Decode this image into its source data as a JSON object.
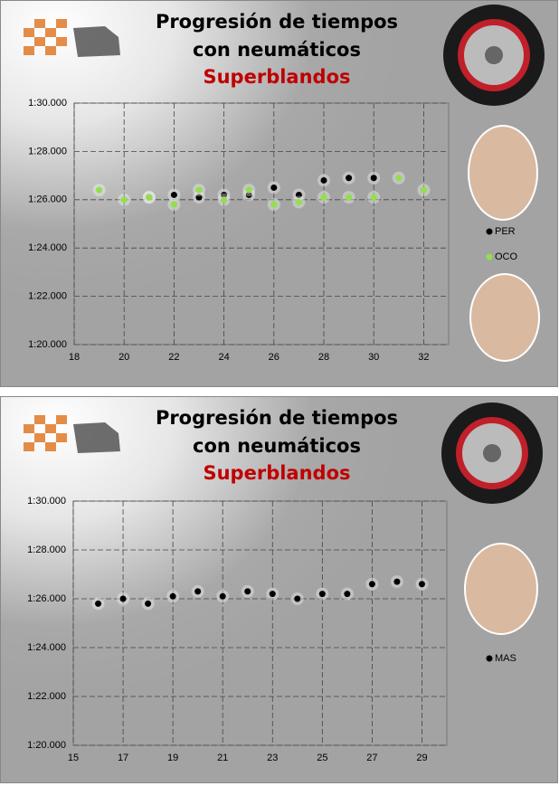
{
  "chart_data": [
    {
      "type": "scatter",
      "title": "Progresión de tiempos con neumáticos",
      "subtitle": "Superblandos",
      "xlim": [
        18,
        33
      ],
      "xticks": [
        18,
        20,
        22,
        24,
        26,
        28,
        30,
        32
      ],
      "ylim": [
        80,
        90
      ],
      "yticks": [
        {
          "value": 80,
          "label": "1:20.000"
        },
        {
          "value": 82,
          "label": "1:22.000"
        },
        {
          "value": 84,
          "label": "1:24.000"
        },
        {
          "value": 86,
          "label": "1:26.000"
        },
        {
          "value": 88,
          "label": "1:28.000"
        },
        {
          "value": 90,
          "label": "1:30.000"
        }
      ],
      "grid": true,
      "series": [
        {
          "name": "PER",
          "color": "#000000",
          "x": [
            21,
            22,
            23,
            24,
            25,
            26,
            27,
            28,
            29,
            30
          ],
          "values": [
            86.1,
            86.2,
            86.1,
            86.2,
            86.2,
            86.5,
            86.2,
            86.8,
            86.9,
            86.9
          ]
        },
        {
          "name": "OCO",
          "color": "#92e04a",
          "x": [
            19,
            20,
            21,
            22,
            23,
            24,
            25,
            26,
            27,
            28,
            29,
            30,
            31,
            32
          ],
          "values": [
            86.4,
            86.0,
            86.1,
            85.8,
            86.4,
            86.0,
            86.4,
            85.8,
            85.9,
            86.1,
            86.1,
            86.1,
            86.9,
            86.4
          ]
        }
      ]
    },
    {
      "type": "scatter",
      "title": "Progresión de tiempos con neumáticos",
      "subtitle": "Superblandos",
      "xlim": [
        15,
        30
      ],
      "xticks": [
        15,
        17,
        19,
        21,
        23,
        25,
        27,
        29
      ],
      "ylim": [
        80,
        90
      ],
      "yticks": [
        {
          "value": 80,
          "label": "1:20.000"
        },
        {
          "value": 82,
          "label": "1:22.000"
        },
        {
          "value": 84,
          "label": "1:24.000"
        },
        {
          "value": 86,
          "label": "1:26.000"
        },
        {
          "value": 88,
          "label": "1:28.000"
        },
        {
          "value": 90,
          "label": "1:30.000"
        }
      ],
      "grid": true,
      "series": [
        {
          "name": "MAS",
          "color": "#000000",
          "x": [
            16,
            17,
            18,
            19,
            20,
            21,
            22,
            23,
            24,
            25,
            26,
            27,
            28,
            29
          ],
          "values": [
            85.8,
            86.0,
            85.8,
            86.1,
            86.3,
            86.1,
            86.3,
            86.2,
            86.0,
            86.2,
            86.2,
            86.6,
            86.7,
            86.6
          ]
        }
      ]
    }
  ]
}
